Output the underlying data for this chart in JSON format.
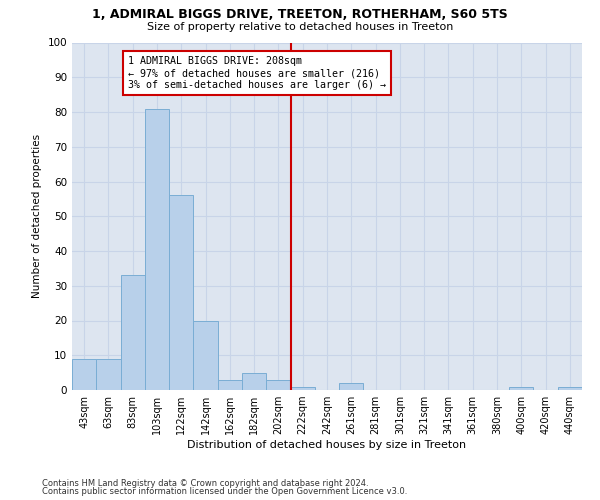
{
  "title1": "1, ADMIRAL BIGGS DRIVE, TREETON, ROTHERHAM, S60 5TS",
  "title2": "Size of property relative to detached houses in Treeton",
  "xlabel": "Distribution of detached houses by size in Treeton",
  "ylabel": "Number of detached properties",
  "bin_labels": [
    "43sqm",
    "63sqm",
    "83sqm",
    "103sqm",
    "122sqm",
    "142sqm",
    "162sqm",
    "182sqm",
    "202sqm",
    "222sqm",
    "242sqm",
    "261sqm",
    "281sqm",
    "301sqm",
    "321sqm",
    "341sqm",
    "361sqm",
    "380sqm",
    "400sqm",
    "420sqm",
    "440sqm"
  ],
  "bar_values": [
    9,
    9,
    33,
    81,
    56,
    20,
    3,
    5,
    3,
    1,
    0,
    2,
    0,
    0,
    0,
    0,
    0,
    0,
    1,
    0,
    1
  ],
  "bar_color": "#b8d0ea",
  "bar_edge_color": "#7aadd4",
  "vline_x": 8.5,
  "vline_color": "#cc0000",
  "annotation_text": "1 ADMIRAL BIGGS DRIVE: 208sqm\n← 97% of detached houses are smaller (216)\n3% of semi-detached houses are larger (6) →",
  "annotation_box_color": "#cc0000",
  "ylim": [
    0,
    100
  ],
  "yticks": [
    0,
    10,
    20,
    30,
    40,
    50,
    60,
    70,
    80,
    90,
    100
  ],
  "grid_color": "#c8d4e8",
  "background_color": "#dde5f0",
  "footer1": "Contains HM Land Registry data © Crown copyright and database right 2024.",
  "footer2": "Contains public sector information licensed under the Open Government Licence v3.0."
}
